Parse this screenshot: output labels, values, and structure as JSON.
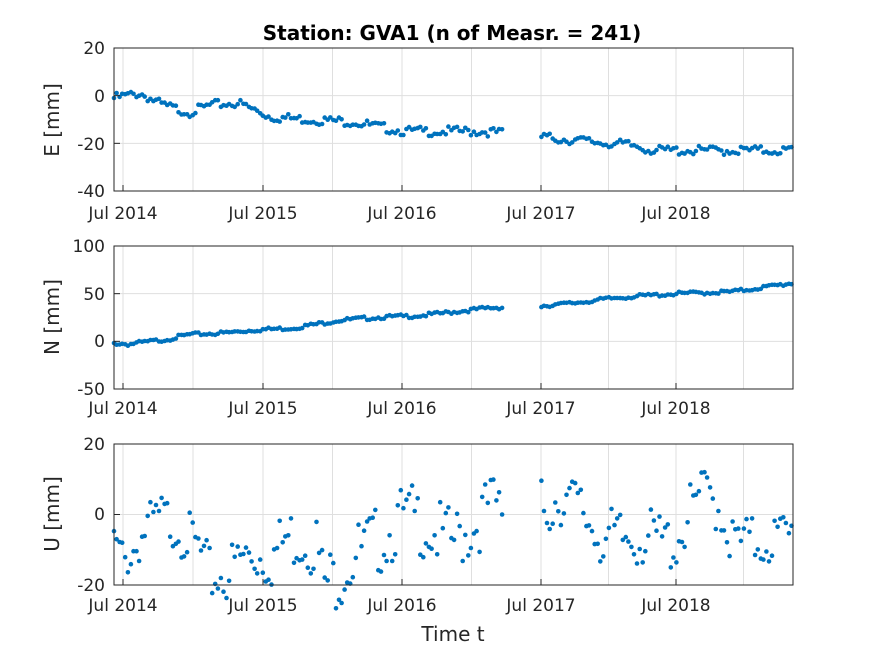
{
  "title": "Station: GVA1 (n of Measr. = 241)",
  "xlabel": "Time t",
  "x_ticks": [
    "Jul 2014",
    "Jul 2015",
    "Jul 2016",
    "Jul 2017",
    "Jul 2018"
  ],
  "marker_color": "#0072BD",
  "chart_data": [
    {
      "type": "scatter",
      "ylabel": "E [mm]",
      "x_range": [
        "2014-05-25",
        "2019-05-10"
      ],
      "ylim": [
        -40,
        20
      ],
      "y_ticks": [
        "20",
        "0",
        "-20",
        "-40"
      ],
      "grid": true,
      "series": [
        {
          "points": []
        }
      ]
    },
    {
      "type": "scatter",
      "ylabel": "N [mm]",
      "x_range": [
        "2014-05-25",
        "2019-05-10"
      ],
      "ylim": [
        -50,
        100
      ],
      "y_ticks": [
        "100",
        "50",
        "0",
        "-50"
      ],
      "grid": true,
      "series": [
        {
          "points": []
        }
      ]
    },
    {
      "type": "scatter",
      "ylabel": "U [mm]",
      "x_range": [
        "2014-05-25",
        "2019-05-10"
      ],
      "ylim": [
        -20,
        20
      ],
      "y_ticks": [
        "20",
        "0",
        "-20"
      ],
      "grid": true,
      "series": [
        {
          "points": []
        }
      ]
    }
  ]
}
